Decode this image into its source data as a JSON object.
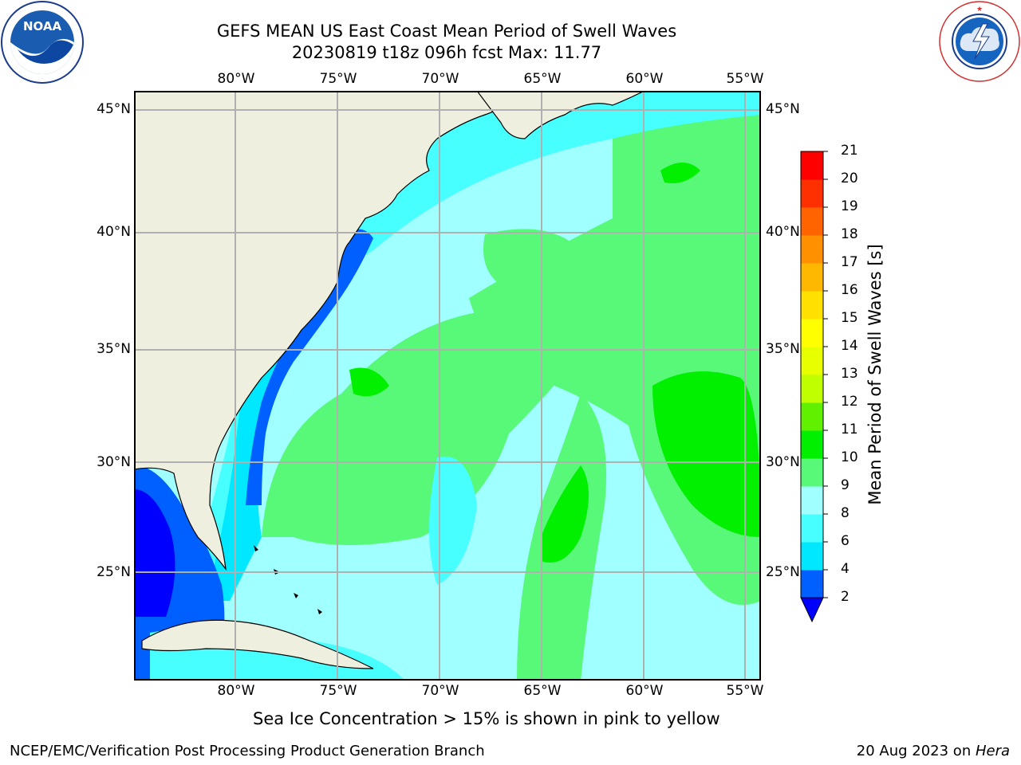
{
  "title_line1": "GEFS MEAN US East Coast Mean Period of Swell Waves",
  "title_line2": "20230819 t18z 096h fcst   Max: 11.77",
  "logos": {
    "left": {
      "name": "NOAA",
      "text": "NOAA",
      "ring_text": "NATIONAL OCEANIC AND ATMOSPHERIC ADMINISTRATION · U.S. DEPARTMENT OF COMMERCE"
    },
    "right": {
      "name": "National Weather Service",
      "ring_text": "NATIONAL WEATHER SERVICE"
    }
  },
  "map": {
    "extent": {
      "lon_min": -85,
      "lon_max": -54.2,
      "lat_min": 20.5,
      "lat_max": 45.8
    },
    "lon_labels": [
      "80°W",
      "75°W",
      "70°W",
      "65°W",
      "60°W",
      "55°W"
    ],
    "lat_labels": [
      "45°N",
      "40°N",
      "35°N",
      "30°N",
      "25°N"
    ],
    "gridlines": true,
    "land_color": "#efefdf",
    "grid_color": "#b0b0b0"
  },
  "colorbar": {
    "label": "Mean Period of Swell Waves [s]",
    "ticks": [
      "2",
      "4",
      "6",
      "8",
      "9",
      "10",
      "11",
      "12",
      "13",
      "14",
      "15",
      "16",
      "17",
      "18",
      "19",
      "20",
      "21"
    ],
    "colors": [
      "#0060ff",
      "#00e8ff",
      "#48ffff",
      "#a0ffff",
      "#58f878",
      "#00f000",
      "#60f000",
      "#c0ff00",
      "#e8ff00",
      "#ffff00",
      "#ffe000",
      "#ffb800",
      "#ff9000",
      "#ff6400",
      "#ff3000",
      "#ff0000"
    ],
    "under_color": "#0000ff",
    "extend": "min"
  },
  "max_value": 11.77,
  "note": "Sea Ice Concentration > 15% is shown in pink to yellow",
  "footer": {
    "left": "NCEP/EMC/Verification Post Processing Product Generation Branch",
    "right_date": "20 Aug 2023 on ",
    "right_machine": "Hera"
  }
}
